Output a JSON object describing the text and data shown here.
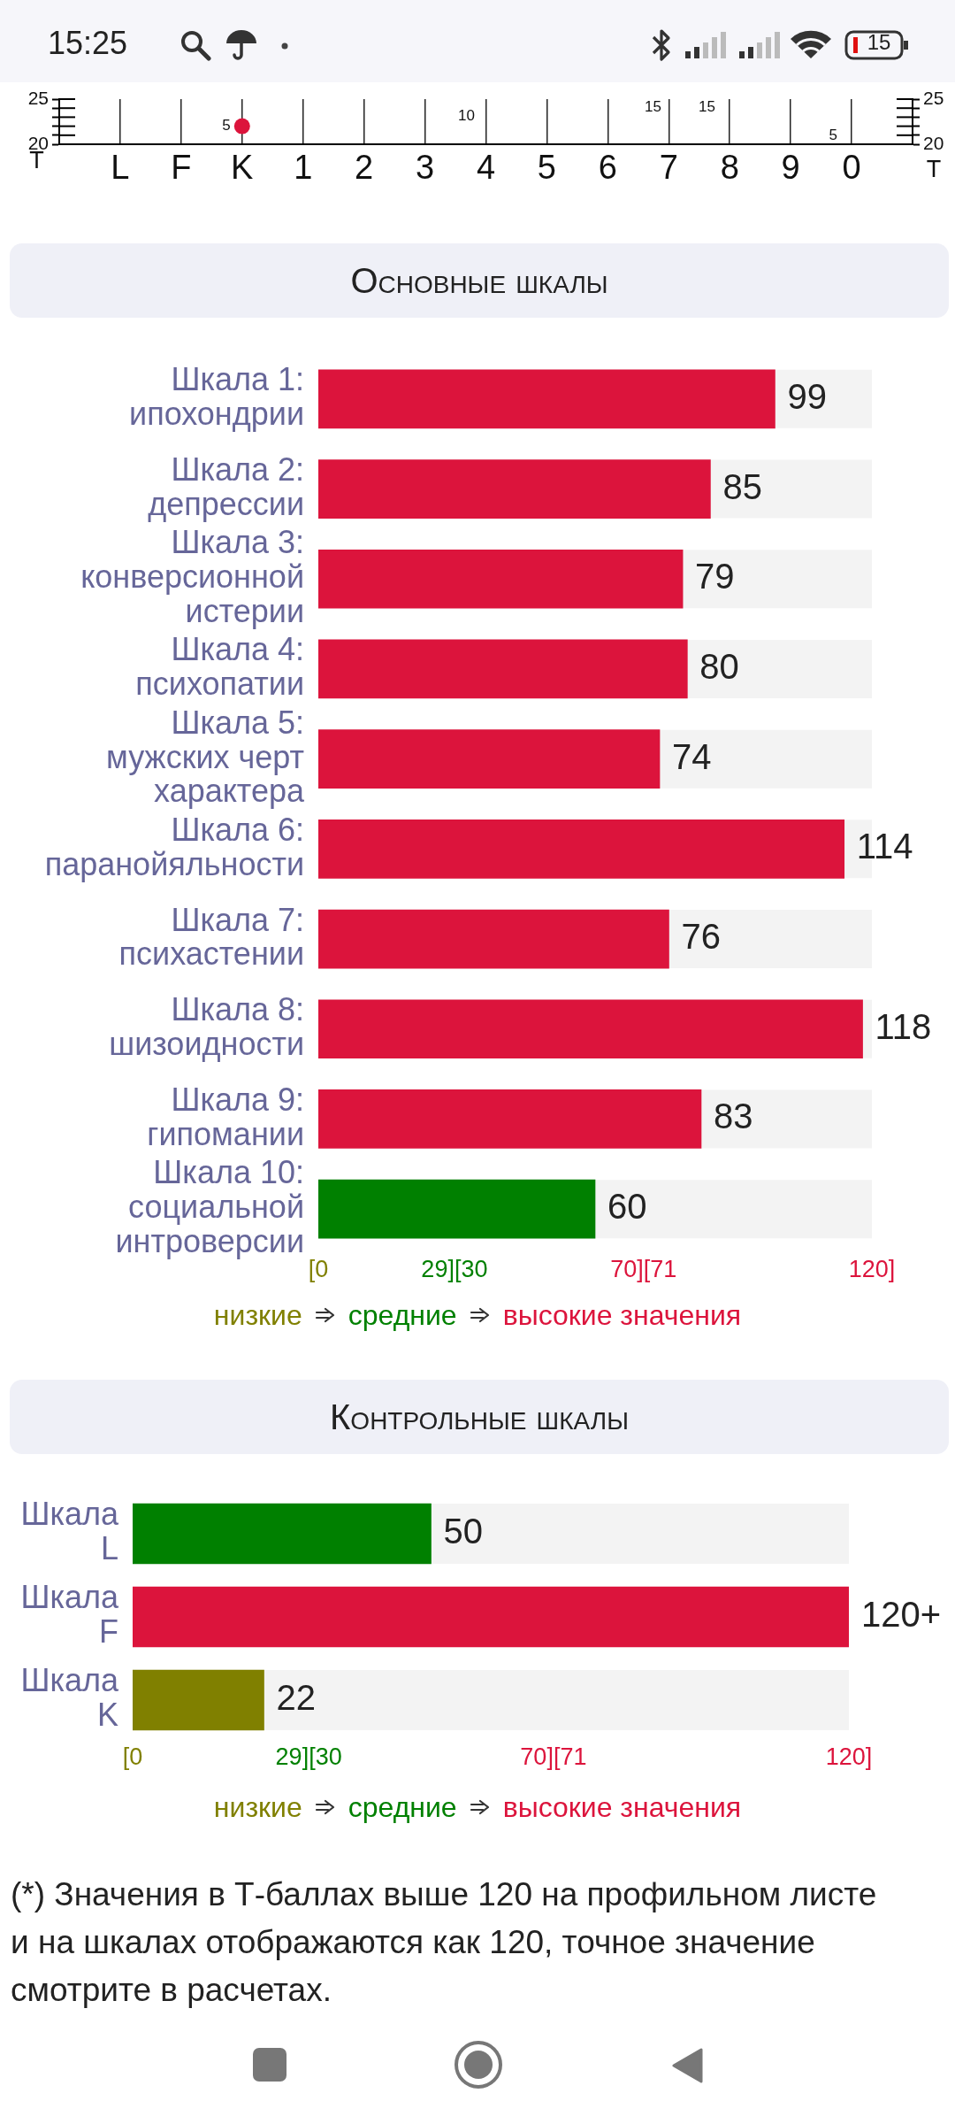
{
  "chart_data": [
    {
      "type": "line",
      "categories": [
        "L",
        "F",
        "K",
        "1",
        "2",
        "3",
        "4",
        "5",
        "6",
        "7",
        "8",
        "9",
        "0"
      ],
      "series": [
        {
          "color": "#dc143c",
          "values": [
            null,
            null,
            22,
            null,
            null,
            null,
            null,
            null,
            null,
            null,
            null,
            null,
            null
          ]
        }
      ],
      "ylim": [
        20,
        25
      ],
      "yticks": [
        20,
        {
          "value": 21,
          "label": null
        },
        {
          "value": 22,
          "label": null
        },
        {
          "value": 23,
          "label": null
        },
        {
          "value": 24,
          "label": null
        },
        25
      ],
      "y2lim": [
        20,
        25
      ],
      "y2ticks": [
        20,
        {
          "value": 21,
          "label": null
        },
        {
          "value": 22,
          "label": null
        },
        {
          "value": 23,
          "label": null
        },
        {
          "value": 24,
          "label": null
        },
        25
      ],
      "ylabel": "T",
      "y2label": "T",
      "grid": "x",
      "marker": "circle",
      "annotations": [
        "15:25",
        "15",
        {
          "text": "5",
          "x": "K",
          "y": 22
        },
        "10",
        "15",
        "15",
        "5"
      ]
    },
    {
      "type": "bar",
      "orientation": "horizontal",
      "stacked": true,
      "title": "Основные шкалы",
      "categories": [
        "Шкала 1: ипохондрии",
        "Шкала 2: депрессии",
        "Шкала 3: конверсионной истерии",
        "Шкала 4: психопатии",
        "Шкала 5: мужских черт характера",
        "Шкала 6: паранойяльности",
        "Шкала 7: психастении",
        "Шкала 8: шизоидности",
        "Шкала 9: гипомании",
        "Шкала 10: социальной интроверсии"
      ],
      "series": [
        {
          "name": "низкие",
          "color": "#808000",
          "values": [
            null,
            null,
            null,
            null,
            null,
            null,
            null,
            null,
            null,
            null
          ]
        },
        {
          "name": "средние",
          "color": "#008000",
          "values": [
            null,
            null,
            null,
            null,
            null,
            null,
            null,
            null,
            null,
            60
          ]
        },
        {
          "name": "высокие значения",
          "color": "#dc143c",
          "values": [
            99,
            85,
            79,
            80,
            74,
            114,
            76,
            118,
            83,
            null
          ]
        }
      ],
      "xlim": [
        0,
        120
      ],
      "xticks": [
        {
          "value": 0,
          "label": "[0"
        },
        {
          "value": 29.5,
          "label": "29][30"
        },
        {
          "value": 70.5,
          "label": "70][71"
        },
        {
          "value": 120,
          "label": "120]"
        }
      ],
      "data_labels": true,
      "legend": "bottom"
    },
    {
      "type": "bar",
      "orientation": "horizontal",
      "stacked": true,
      "title": "Контрольные шкалы",
      "categories": [
        "Шкала L",
        "Шкала F",
        "Шкала K"
      ],
      "series": [
        {
          "name": "низкие",
          "color": "#808000",
          "values": [
            null,
            null,
            22
          ],
          "value_labels": [
            null,
            null,
            "22"
          ]
        },
        {
          "name": "средние",
          "color": "#008000",
          "values": [
            50,
            null,
            null
          ],
          "value_labels": [
            "50",
            null,
            null
          ]
        },
        {
          "name": "высокие значения",
          "color": "#dc143c",
          "values": [
            null,
            120,
            null
          ],
          "value_labels": [
            null,
            "120+",
            null
          ]
        }
      ],
      "xlim": [
        0,
        120
      ],
      "xticks": [
        {
          "value": 0,
          "label": "[0"
        },
        {
          "value": 29.5,
          "label": "29][30"
        },
        {
          "value": 70.5,
          "label": "70][71"
        },
        {
          "value": 120,
          "label": "120]"
        }
      ],
      "legend": "bottom",
      "annotations": [
        "(*) Значения в Т-баллах выше 120 на профильном листе и на шкалах отображаются как 120, точное значение смотрите в расчетах."
      ]
    }
  ]
}
